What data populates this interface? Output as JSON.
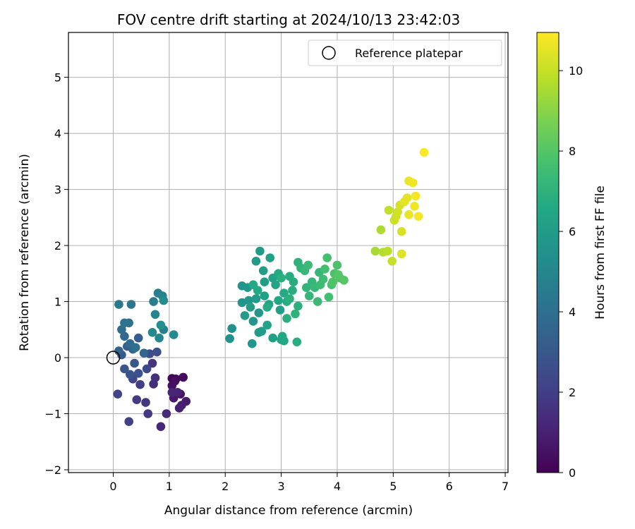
{
  "chart_data": {
    "type": "scatter",
    "title": "FOV centre drift starting at 2024/10/13 23:42:03",
    "xlabel": "Angular distance from reference (arcmin)",
    "ylabel": "Rotation from reference (arcmin)",
    "xlim": [
      -0.8,
      7.05
    ],
    "ylim": [
      -2.05,
      5.8
    ],
    "x_ticks": [
      0,
      1,
      2,
      3,
      4,
      5,
      6,
      7
    ],
    "y_ticks": [
      -2,
      -1,
      0,
      1,
      2,
      3,
      4,
      5
    ],
    "x_tick_labels": [
      "0",
      "1",
      "2",
      "3",
      "4",
      "5",
      "6",
      "7"
    ],
    "y_tick_labels": [
      "−2",
      "−1",
      "0",
      "1",
      "2",
      "3",
      "4",
      "5"
    ],
    "grid": true,
    "legend": {
      "placement": "upper right",
      "entries": [
        "Reference platepar"
      ]
    },
    "reference_point": {
      "label": "Reference platepar",
      "x": 0,
      "y": 0
    },
    "colorbar": {
      "label": "Hours from first FF file",
      "range": [
        0,
        10.95
      ],
      "ticks": [
        0,
        2,
        4,
        6,
        8,
        10
      ],
      "tick_labels": [
        "0",
        "2",
        "4",
        "6",
        "8",
        "10"
      ],
      "colormap": "viridis"
    },
    "series": [
      {
        "points": [
          [
            1.05,
            -0.37,
            0.1
          ],
          [
            1.12,
            -0.38,
            0.2
          ],
          [
            1.25,
            -0.35,
            0.3
          ],
          [
            1.1,
            -0.42,
            0.4
          ],
          [
            1.05,
            -0.5,
            0.5
          ],
          [
            1.2,
            -0.65,
            0.6
          ],
          [
            1.08,
            -0.72,
            0.7
          ],
          [
            1.3,
            -0.78,
            0.8
          ],
          [
            1.22,
            -0.85,
            0.9
          ],
          [
            1.18,
            -0.9,
            1.0
          ],
          [
            1.15,
            -0.62,
            1.1
          ],
          [
            1.05,
            -0.62,
            1.15
          ],
          [
            0.85,
            -1.23,
            1.2
          ],
          [
            0.95,
            -1.0,
            1.3
          ],
          [
            0.72,
            -0.47,
            1.4
          ],
          [
            0.75,
            -0.36,
            1.5
          ],
          [
            0.7,
            -0.1,
            1.6
          ],
          [
            0.58,
            -0.8,
            1.7
          ],
          [
            0.62,
            -1.0,
            1.8
          ],
          [
            0.42,
            -0.75,
            1.9
          ],
          [
            0.48,
            -0.48,
            2.0
          ],
          [
            0.28,
            -1.14,
            2.1
          ],
          [
            0.08,
            -0.65,
            2.2
          ],
          [
            0.35,
            -0.38,
            2.3
          ],
          [
            0.6,
            -0.2,
            2.4
          ],
          [
            0.65,
            0.07,
            2.5
          ],
          [
            0.78,
            0.1,
            2.6
          ],
          [
            0.45,
            -0.28,
            2.7
          ],
          [
            0.3,
            -0.3,
            2.8
          ],
          [
            0.2,
            -0.2,
            2.9
          ],
          [
            0.38,
            -0.1,
            3.0
          ],
          [
            0.15,
            0.05,
            3.1
          ],
          [
            0.45,
            0.35,
            3.2
          ],
          [
            0.25,
            0.2,
            3.3
          ],
          [
            0.1,
            0.12,
            3.4
          ],
          [
            0.35,
            0.15,
            3.5
          ],
          [
            0.55,
            0.08,
            3.6
          ],
          [
            0.2,
            0.38,
            3.7
          ],
          [
            0.3,
            0.25,
            3.8
          ],
          [
            0.15,
            0.5,
            3.9
          ],
          [
            0.4,
            0.18,
            4.0
          ],
          [
            0.2,
            0.62,
            4.1
          ],
          [
            0.28,
            0.62,
            4.2
          ],
          [
            0.32,
            0.95,
            4.3
          ],
          [
            0.1,
            0.95,
            4.4
          ],
          [
            0.72,
            1.0,
            4.5
          ],
          [
            0.8,
            1.15,
            4.6
          ],
          [
            0.9,
            0.5,
            4.7
          ],
          [
            0.88,
            1.1,
            4.8
          ],
          [
            0.75,
            0.77,
            4.9
          ],
          [
            0.82,
            0.35,
            5.0
          ],
          [
            0.7,
            0.45,
            5.1
          ],
          [
            1.08,
            0.41,
            5.2
          ],
          [
            0.9,
            1.02,
            5.3
          ],
          [
            0.85,
            0.58,
            5.4
          ],
          [
            2.08,
            0.34,
            5.5
          ],
          [
            2.12,
            0.52,
            5.5
          ],
          [
            2.3,
            0.98,
            5.6
          ],
          [
            2.3,
            1.28,
            5.6
          ],
          [
            2.5,
            0.65,
            5.7
          ],
          [
            2.48,
            0.25,
            5.7
          ],
          [
            2.42,
            1.02,
            5.8
          ],
          [
            2.6,
            0.8,
            5.8
          ],
          [
            2.62,
            1.9,
            5.9
          ],
          [
            2.55,
            1.72,
            5.9
          ],
          [
            2.65,
            0.47,
            6.0
          ],
          [
            2.35,
            0.75,
            6.0
          ],
          [
            2.45,
            0.9,
            6.1
          ],
          [
            2.68,
            1.55,
            6.1
          ],
          [
            2.8,
            1.78,
            6.2
          ],
          [
            2.7,
            1.1,
            6.2
          ],
          [
            2.75,
            0.58,
            6.3
          ],
          [
            2.85,
            1.42,
            6.3
          ],
          [
            2.9,
            1.3,
            6.4
          ],
          [
            2.78,
            0.95,
            6.4
          ],
          [
            3.02,
            0.38,
            6.5
          ],
          [
            3.05,
            0.3,
            6.5
          ],
          [
            2.95,
            1.5,
            6.6
          ],
          [
            2.58,
            1.2,
            6.6
          ],
          [
            2.5,
            1.3,
            6.6
          ],
          [
            3.1,
            1.0,
            6.7
          ],
          [
            2.75,
            0.9,
            6.7
          ],
          [
            3.2,
            1.2,
            6.8
          ],
          [
            3.28,
            0.28,
            6.8
          ],
          [
            3.0,
            1.42,
            6.9
          ],
          [
            3.15,
            1.05,
            6.9
          ],
          [
            2.98,
            0.85,
            6.2
          ],
          [
            2.7,
            1.35,
            6.1
          ],
          [
            2.55,
            1.05,
            5.9
          ],
          [
            2.4,
            1.25,
            5.8
          ],
          [
            2.6,
            0.45,
            5.9
          ],
          [
            2.85,
            0.35,
            6.2
          ],
          [
            3.0,
            0.32,
            6.4
          ],
          [
            2.95,
            1.02,
            6.5
          ],
          [
            3.05,
            1.15,
            6.6
          ],
          [
            3.15,
            1.45,
            6.7
          ],
          [
            3.22,
            1.35,
            6.8
          ],
          [
            3.1,
            0.7,
            6.9
          ],
          [
            3.25,
            0.78,
            7.0
          ],
          [
            3.3,
            1.7,
            7.0
          ],
          [
            3.45,
            1.25,
            7.1
          ],
          [
            3.35,
            1.6,
            7.1
          ],
          [
            3.5,
            1.1,
            7.2
          ],
          [
            3.55,
            1.35,
            7.2
          ],
          [
            3.42,
            1.55,
            7.3
          ],
          [
            3.6,
            1.25,
            7.3
          ],
          [
            3.48,
            1.65,
            7.4
          ],
          [
            3.65,
            1.0,
            7.4
          ],
          [
            3.7,
            1.3,
            7.5
          ],
          [
            3.75,
            1.4,
            7.5
          ],
          [
            3.78,
            1.58,
            7.6
          ],
          [
            3.85,
            1.08,
            7.6
          ],
          [
            3.9,
            1.3,
            7.7
          ],
          [
            3.82,
            1.78,
            7.7
          ],
          [
            3.95,
            1.5,
            7.8
          ],
          [
            4.0,
            1.65,
            7.8
          ],
          [
            4.05,
            1.42,
            7.9
          ],
          [
            3.92,
            1.35,
            7.9
          ],
          [
            3.68,
            1.52,
            7.2
          ],
          [
            3.3,
            0.92,
            6.9
          ],
          [
            4.12,
            1.38,
            8.0
          ],
          [
            4.02,
            1.48,
            8.0
          ],
          [
            4.68,
            1.9,
            9.5
          ],
          [
            4.78,
            2.28,
            9.6
          ],
          [
            4.82,
            1.88,
            9.7
          ],
          [
            4.9,
            1.9,
            9.8
          ],
          [
            4.92,
            2.63,
            9.9
          ],
          [
            4.98,
            1.72,
            10.0
          ],
          [
            5.02,
            2.45,
            10.1
          ],
          [
            5.05,
            2.52,
            10.1
          ],
          [
            5.08,
            2.6,
            10.2
          ],
          [
            5.12,
            2.72,
            10.3
          ],
          [
            5.15,
            2.25,
            10.3
          ],
          [
            5.15,
            1.85,
            10.4
          ],
          [
            5.2,
            2.78,
            10.5
          ],
          [
            5.25,
            2.85,
            10.5
          ],
          [
            5.28,
            2.55,
            10.6
          ],
          [
            5.28,
            3.15,
            10.6
          ],
          [
            5.35,
            3.12,
            10.7
          ],
          [
            5.38,
            2.7,
            10.7
          ],
          [
            5.4,
            2.88,
            10.8
          ],
          [
            5.45,
            2.52,
            10.8
          ],
          [
            5.55,
            3.66,
            10.9
          ]
        ]
      }
    ]
  }
}
